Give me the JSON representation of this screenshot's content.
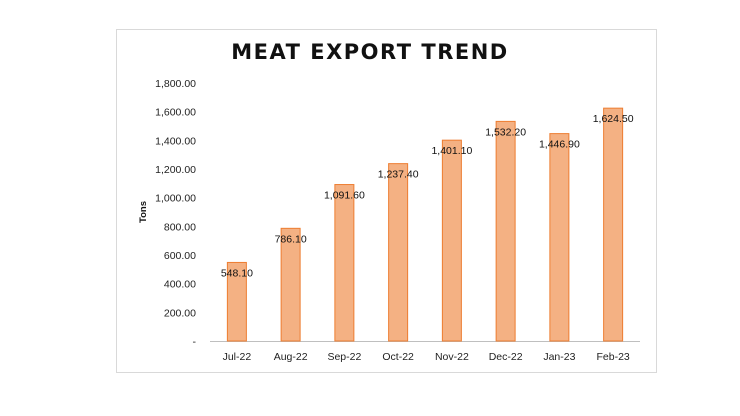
{
  "chart_data": {
    "type": "bar",
    "title": "MEAT EXPORT TREND",
    "xlabel": "",
    "ylabel": "Tons",
    "categories": [
      "Jul-22",
      "Aug-22",
      "Sep-22",
      "Oct-22",
      "Nov-22",
      "Dec-22",
      "Jan-23",
      "Feb-23"
    ],
    "values": [
      548.1,
      786.1,
      1091.6,
      1237.4,
      1401.1,
      1532.2,
      1446.9,
      1624.5
    ],
    "value_labels": [
      "548.10",
      "786.10",
      "1,091.60",
      "1,237.40",
      "1,401.10",
      "1,532.20",
      "1,446.90",
      "1,624.50"
    ],
    "ylim": [
      0,
      1800
    ],
    "yticks": [
      0,
      200,
      400,
      600,
      800,
      1000,
      1200,
      1400,
      1600,
      1800
    ],
    "ytick_labels": [
      "-",
      "200.00",
      "400.00",
      "600.00",
      "800.00",
      "1,000.00",
      "1,200.00",
      "1,400.00",
      "1,600.00",
      "1,800.00"
    ],
    "grid": false,
    "legend": "none",
    "bar_color": "#f4b183",
    "bar_edge_color": "#ed7d31"
  }
}
